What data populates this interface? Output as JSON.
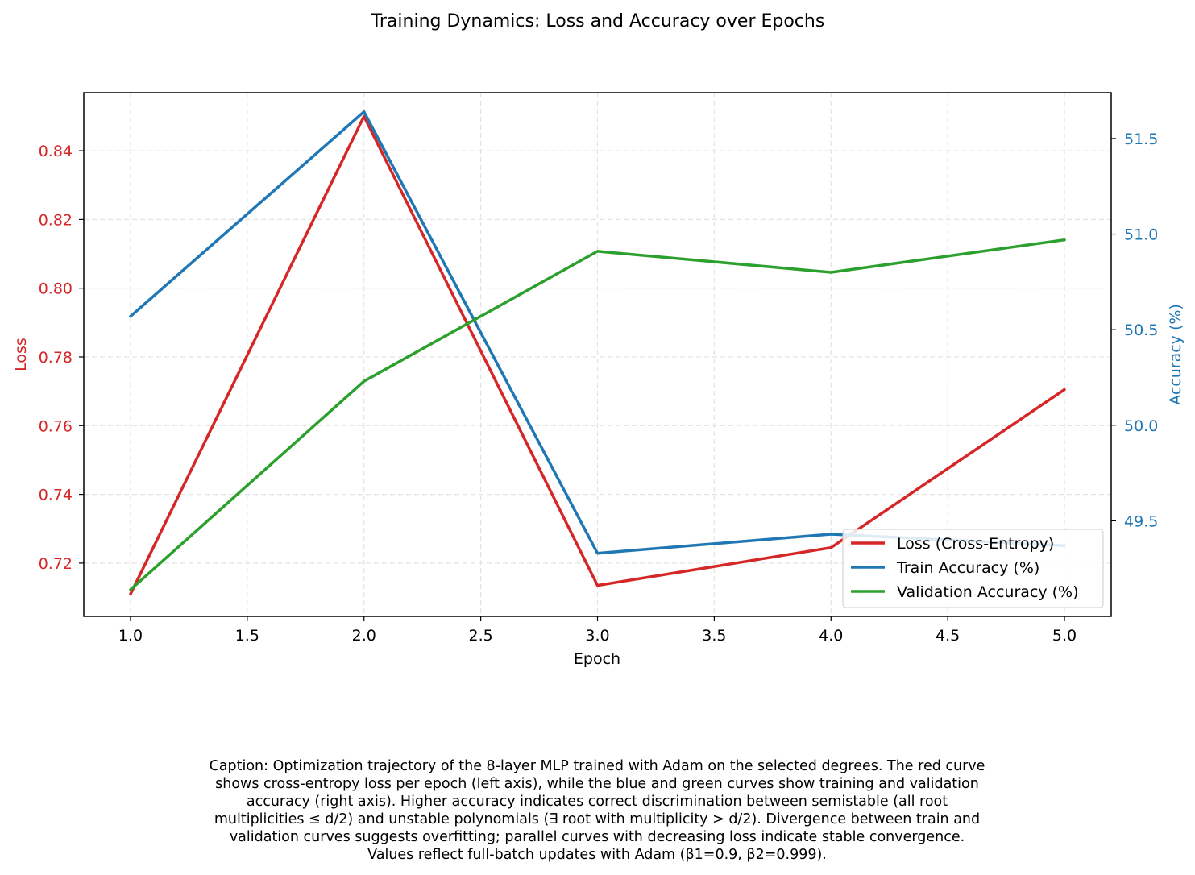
{
  "chart_data": {
    "type": "line",
    "title": "Training Dynamics: Loss and Accuracy over Epochs",
    "xlabel": "Epoch",
    "ylabel_left": "Loss",
    "ylabel_right": "Accuracy (%)",
    "x": [
      1,
      2,
      3,
      4,
      5
    ],
    "xlim": [
      0.8,
      5.2
    ],
    "ylim_left": [
      0.7045,
      0.8569
    ],
    "ylim_right": [
      49.0,
      51.74
    ],
    "x_ticks": [
      "1.0",
      "1.5",
      "2.0",
      "2.5",
      "3.0",
      "3.5",
      "4.0",
      "4.5",
      "5.0"
    ],
    "y_left_ticks": [
      "0.72",
      "0.74",
      "0.76",
      "0.78",
      "0.80",
      "0.82",
      "0.84"
    ],
    "y_right_ticks": [
      "49.5",
      "50.0",
      "50.5",
      "51.0",
      "51.5"
    ],
    "grid": true,
    "legend_position": "lower right",
    "series": [
      {
        "name": "Loss (Cross-Entropy)",
        "axis": "left",
        "color": "#d62728",
        "values": [
          0.711,
          0.85,
          0.7135,
          0.7245,
          0.7705
        ]
      },
      {
        "name": "Train Accuracy (%)",
        "axis": "right",
        "color": "#1f77b4",
        "values": [
          50.57,
          51.64,
          49.33,
          49.43,
          49.37
        ]
      },
      {
        "name": "Validation Accuracy (%)",
        "axis": "right",
        "color": "#2ca02c",
        "values": [
          49.14,
          50.23,
          50.91,
          50.8,
          50.97
        ]
      }
    ]
  },
  "caption_lines": [
    "Caption: Optimization trajectory of the 8-layer MLP trained with Adam on the selected degrees. The red curve",
    "shows cross-entropy loss per epoch (left axis), while the blue and green curves show training and validation",
    "accuracy (right axis). Higher accuracy indicates correct discrimination between semistable (all root",
    "multiplicities ≤ d/2) and unstable polynomials (∃ root with multiplicity > d/2). Divergence between train and",
    "validation curves suggests overfitting; parallel curves with decreasing loss indicate stable convergence.",
    "Values reflect full-batch updates with Adam (β1=0.9, β2=0.999)."
  ]
}
